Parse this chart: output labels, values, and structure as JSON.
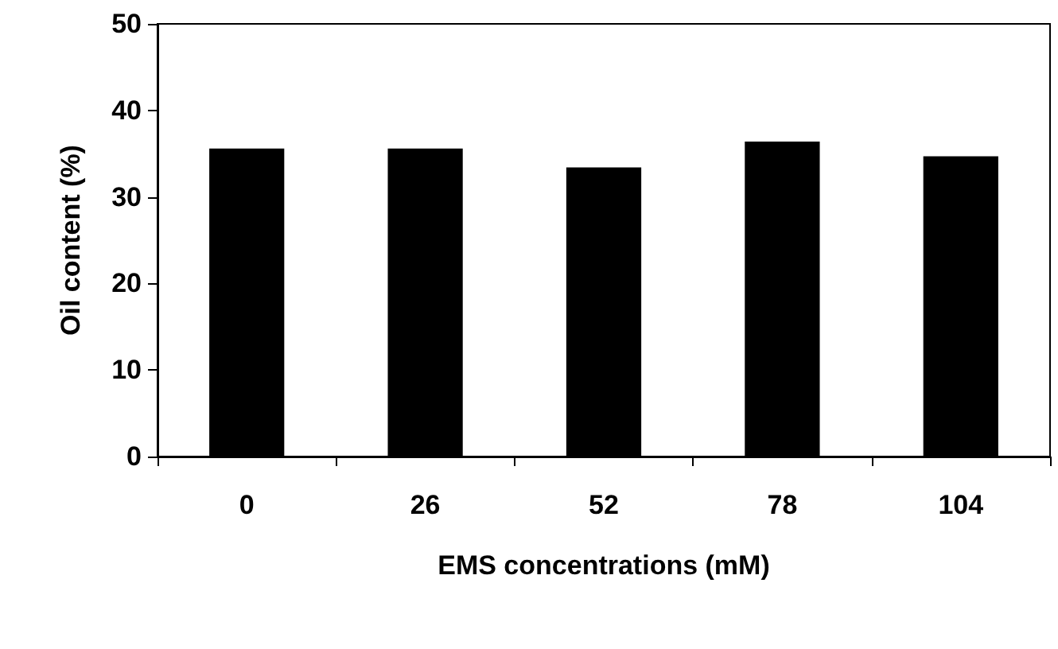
{
  "chart_data": {
    "type": "bar",
    "xlabel": "EMS concentrations (mM)",
    "ylabel": "Oil content (%)",
    "categories": [
      "0",
      "26",
      "52",
      "78",
      "104"
    ],
    "values": [
      35.6,
      35.6,
      33.4,
      36.4,
      34.7
    ],
    "color": "#000000",
    "ylim": [
      0,
      50
    ],
    "yticks": [
      0,
      10,
      20,
      30,
      40,
      50
    ],
    "grid": false
  }
}
